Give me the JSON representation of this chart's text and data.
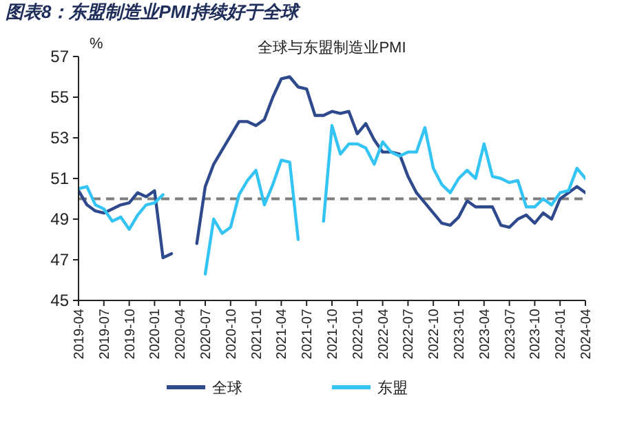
{
  "chart_data": {
    "type": "line",
    "title": "图表8：东盟制造业PMI持续好于全球",
    "subtitle": "全球与东盟制造业PMI",
    "ylabel": "%",
    "x": [
      "2019-04",
      "2019-05",
      "2019-06",
      "2019-07",
      "2019-08",
      "2019-09",
      "2019-10",
      "2019-11",
      "2019-12",
      "2020-01",
      "2020-02",
      "2020-03",
      "2020-04",
      "2020-05",
      "2020-06",
      "2020-07",
      "2020-08",
      "2020-09",
      "2020-10",
      "2020-11",
      "2020-12",
      "2021-01",
      "2021-02",
      "2021-03",
      "2021-04",
      "2021-05",
      "2021-06",
      "2021-07",
      "2021-08",
      "2021-09",
      "2021-10",
      "2021-11",
      "2021-12",
      "2022-01",
      "2022-02",
      "2022-03",
      "2022-04",
      "2022-05",
      "2022-06",
      "2022-07",
      "2022-08",
      "2022-09",
      "2022-10",
      "2022-11",
      "2022-12",
      "2023-01",
      "2023-02",
      "2023-03",
      "2023-04",
      "2023-05",
      "2023-06",
      "2023-07",
      "2023-08",
      "2023-09",
      "2023-10",
      "2023-11",
      "2023-12",
      "2024-01",
      "2024-02",
      "2024-03",
      "2024-04"
    ],
    "series": [
      {
        "name": "全球",
        "color": "#2e4a8c",
        "values": [
          50.4,
          49.7,
          49.4,
          49.3,
          49.5,
          49.7,
          49.8,
          50.3,
          50.1,
          50.4,
          47.1,
          47.3,
          null,
          null,
          47.8,
          50.6,
          51.7,
          52.4,
          53.1,
          53.8,
          53.8,
          53.6,
          53.9,
          55.0,
          55.9,
          56.0,
          55.5,
          55.4,
          54.1,
          54.1,
          54.3,
          54.2,
          54.3,
          53.2,
          53.7,
          52.9,
          52.3,
          52.3,
          52.2,
          51.1,
          50.3,
          49.8,
          49.3,
          48.8,
          48.7,
          49.1,
          49.9,
          49.6,
          49.6,
          49.6,
          48.7,
          48.6,
          49.0,
          49.2,
          48.8,
          49.3,
          49.0,
          50.0,
          50.3,
          50.6,
          50.3
        ]
      },
      {
        "name": "东盟",
        "color": "#33c4f4",
        "values": [
          50.5,
          50.6,
          49.7,
          49.5,
          48.9,
          49.1,
          48.5,
          49.2,
          49.7,
          49.8,
          50.2,
          null,
          null,
          null,
          null,
          46.3,
          49.0,
          48.3,
          48.6,
          50.2,
          50.9,
          51.4,
          49.7,
          50.7,
          51.9,
          51.8,
          48.0,
          null,
          null,
          48.9,
          53.6,
          52.2,
          52.7,
          52.7,
          52.5,
          51.7,
          52.8,
          52.3,
          52.1,
          52.3,
          52.3,
          53.5,
          51.5,
          50.7,
          50.3,
          51.0,
          51.4,
          51.0,
          52.7,
          51.1,
          51.0,
          50.8,
          50.9,
          49.6,
          49.6,
          50.0,
          49.7,
          50.3,
          50.4,
          51.5,
          51.0
        ]
      }
    ],
    "xlim": [
      "2019-04",
      "2024-04"
    ],
    "xticks": [
      "2019-04",
      "2019-07",
      "2019-10",
      "2020-01",
      "2020-04",
      "2020-07",
      "2020-10",
      "2021-01",
      "2021-04",
      "2021-07",
      "2021-10",
      "2022-01",
      "2022-04",
      "2022-07",
      "2022-10",
      "2023-01",
      "2023-04",
      "2023-07",
      "2023-10",
      "2024-01",
      "2024-04"
    ],
    "ylim": [
      45,
      57
    ],
    "yticks": [
      45,
      47,
      49,
      51,
      53,
      55,
      57
    ],
    "ref_lines": [
      {
        "axis": "y",
        "value": 50,
        "color": "#7f7f7f",
        "line_style": "dashed"
      }
    ],
    "legend": "bottom",
    "grid": false,
    "marker": "none",
    "line_style": "solid"
  }
}
